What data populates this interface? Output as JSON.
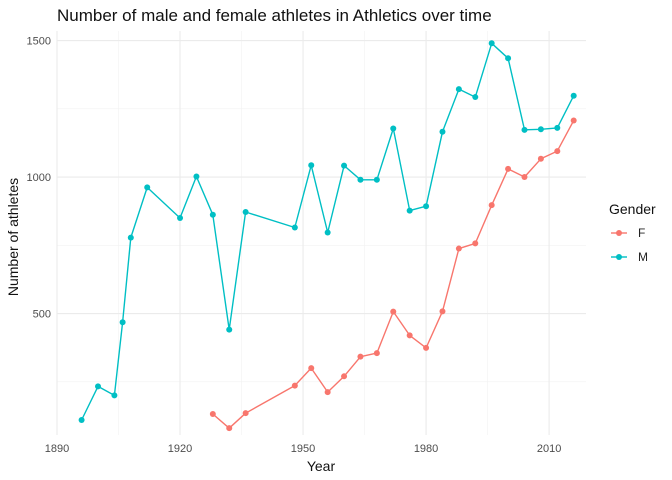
{
  "chart_data": {
    "type": "line",
    "title": "Number of male and female athletes in Athletics over time",
    "xlabel": "Year",
    "ylabel": "Number of athletes",
    "xlim": [
      1890,
      2019
    ],
    "ylim": [
      55,
      1535
    ],
    "xticks": [
      1890,
      1920,
      1950,
      1980,
      2010
    ],
    "yticks": [
      500,
      1000,
      1500
    ],
    "grid": true,
    "legend": {
      "title": "Gender",
      "position": "right"
    },
    "series": [
      {
        "name": "F",
        "color": "#F8766D",
        "x": [
          1928,
          1932,
          1936,
          1948,
          1952,
          1956,
          1960,
          1964,
          1968,
          1972,
          1976,
          1980,
          1984,
          1988,
          1992,
          1996,
          2000,
          2004,
          2008,
          2012,
          2016
        ],
        "y": [
          132,
          80,
          135,
          236,
          300,
          212,
          270,
          342,
          355,
          507,
          420,
          374,
          508,
          738,
          757,
          897,
          1030,
          1000,
          1067,
          1095,
          1207
        ]
      },
      {
        "name": "M",
        "color": "#00BFC4",
        "x": [
          1896,
          1900,
          1904,
          1906,
          1908,
          1912,
          1920,
          1924,
          1928,
          1932,
          1936,
          1948,
          1952,
          1956,
          1960,
          1964,
          1968,
          1972,
          1976,
          1980,
          1984,
          1988,
          1992,
          1996,
          2000,
          2004,
          2008,
          2012,
          2016
        ],
        "y": [
          110,
          233,
          200,
          468,
          778,
          962,
          850,
          1002,
          862,
          441,
          872,
          815,
          1043,
          797,
          1042,
          990,
          990,
          1178,
          877,
          893,
          1166,
          1322,
          1293,
          1490,
          1435,
          1173,
          1175,
          1180,
          1298
        ]
      }
    ]
  }
}
